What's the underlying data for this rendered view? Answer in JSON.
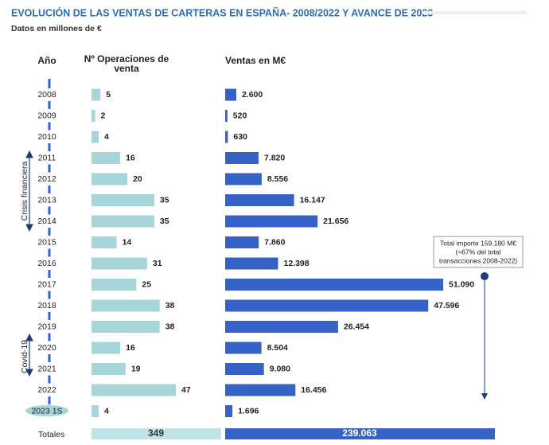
{
  "chart_data": {
    "type": "bar",
    "title": "EVOLUCIÓN DE LAS VENTAS DE CARTERAS EN ESPAÑA- 2008/2022 Y AVANCE DE 2023",
    "subtitle": "Datos en millones de €",
    "category_label": "Año",
    "categories": [
      "2008",
      "2009",
      "2010",
      "2011",
      "2012",
      "2013",
      "2014",
      "2015",
      "2016",
      "2017",
      "2018",
      "2019",
      "2020",
      "2021",
      "2022",
      "2023 1S"
    ],
    "series": [
      {
        "name": "Nº Operaciones de venta",
        "color": "#a6d6da",
        "values": [
          5,
          2,
          4,
          16,
          20,
          35,
          35,
          14,
          31,
          25,
          38,
          38,
          16,
          19,
          47,
          4
        ]
      },
      {
        "name": "Ventas en M€",
        "color": "#3462c6",
        "values": [
          2600,
          520,
          630,
          7820,
          8556,
          16147,
          21656,
          7860,
          12398,
          51090,
          47596,
          26454,
          8504,
          9080,
          16456,
          1696
        ],
        "value_labels": [
          "2.600",
          "520",
          "630",
          "7.820",
          "8.556",
          "16.147",
          "21.656",
          "7.860",
          "12.398",
          "51.090",
          "47.596",
          "26.454",
          "8.504",
          "9.080",
          "16.456",
          "1.696"
        ]
      }
    ],
    "totals": {
      "label": "Totales",
      "values": [
        349,
        239063
      ],
      "value_labels": [
        "349",
        "239.063"
      ]
    },
    "annotations": {
      "crisis": "Crisis financiera",
      "covid": "Covid-19",
      "note": [
        "Total importe 159.180 M€",
        "(≈67% del total",
        "transacciones 2008-2022)"
      ]
    }
  }
}
